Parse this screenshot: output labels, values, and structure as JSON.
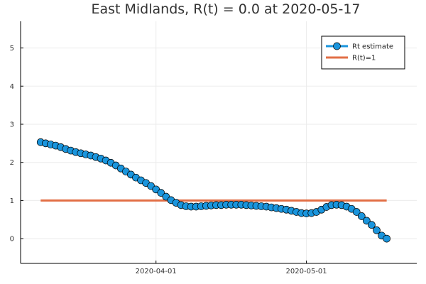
{
  "chart_data": {
    "type": "line",
    "title": "East Midlands, R(t) = 0.0 at 2020-05-17",
    "xlabel": "",
    "ylabel": "",
    "x_start_date": "2020-03-09",
    "x_range_dates": [
      "2020-03-05",
      "2020-05-23"
    ],
    "ylim": [
      -0.65,
      5.7
    ],
    "y_ticks": [
      0,
      1,
      2,
      3,
      4,
      5
    ],
    "x_ticks": [
      {
        "date": "2020-04-01",
        "label": "2020-04-01"
      },
      {
        "date": "2020-05-01",
        "label": "2020-05-01"
      }
    ],
    "grid": true,
    "legend_position": "top-right",
    "series": [
      {
        "name": "Rt estimate",
        "color": "#1a95dd",
        "marker": "circle",
        "x_dates": [
          "2020-03-09",
          "2020-03-10",
          "2020-03-11",
          "2020-03-12",
          "2020-03-13",
          "2020-03-14",
          "2020-03-15",
          "2020-03-16",
          "2020-03-17",
          "2020-03-18",
          "2020-03-19",
          "2020-03-20",
          "2020-03-21",
          "2020-03-22",
          "2020-03-23",
          "2020-03-24",
          "2020-03-25",
          "2020-03-26",
          "2020-03-27",
          "2020-03-28",
          "2020-03-29",
          "2020-03-30",
          "2020-03-31",
          "2020-04-01",
          "2020-04-02",
          "2020-04-03",
          "2020-04-04",
          "2020-04-05",
          "2020-04-06",
          "2020-04-07",
          "2020-04-08",
          "2020-04-09",
          "2020-04-10",
          "2020-04-11",
          "2020-04-12",
          "2020-04-13",
          "2020-04-14",
          "2020-04-15",
          "2020-04-16",
          "2020-04-17",
          "2020-04-18",
          "2020-04-19",
          "2020-04-20",
          "2020-04-21",
          "2020-04-22",
          "2020-04-23",
          "2020-04-24",
          "2020-04-25",
          "2020-04-26",
          "2020-04-27",
          "2020-04-28",
          "2020-04-29",
          "2020-04-30",
          "2020-05-01",
          "2020-05-02",
          "2020-05-03",
          "2020-05-04",
          "2020-05-05",
          "2020-05-06",
          "2020-05-07",
          "2020-05-08",
          "2020-05-09",
          "2020-05-10",
          "2020-05-11",
          "2020-05-12",
          "2020-05-13",
          "2020-05-14",
          "2020-05-15",
          "2020-05-16",
          "2020-05-17"
        ],
        "values": [
          2.53,
          2.5,
          2.47,
          2.44,
          2.4,
          2.35,
          2.31,
          2.27,
          2.24,
          2.21,
          2.18,
          2.14,
          2.1,
          2.05,
          1.99,
          1.92,
          1.84,
          1.76,
          1.68,
          1.6,
          1.53,
          1.46,
          1.38,
          1.29,
          1.2,
          1.1,
          1.01,
          0.94,
          0.88,
          0.85,
          0.84,
          0.84,
          0.85,
          0.86,
          0.87,
          0.88,
          0.88,
          0.89,
          0.89,
          0.89,
          0.89,
          0.88,
          0.87,
          0.86,
          0.85,
          0.84,
          0.82,
          0.8,
          0.78,
          0.76,
          0.73,
          0.7,
          0.67,
          0.66,
          0.67,
          0.7,
          0.76,
          0.83,
          0.88,
          0.89,
          0.88,
          0.84,
          0.78,
          0.7,
          0.59,
          0.47,
          0.36,
          0.22,
          0.08,
          0.0
        ]
      },
      {
        "name": "R(t)=1",
        "color": "#e26f46",
        "marker": "none",
        "x_dates": [
          "2020-03-09",
          "2020-05-17"
        ],
        "values": [
          1,
          1
        ]
      }
    ]
  }
}
